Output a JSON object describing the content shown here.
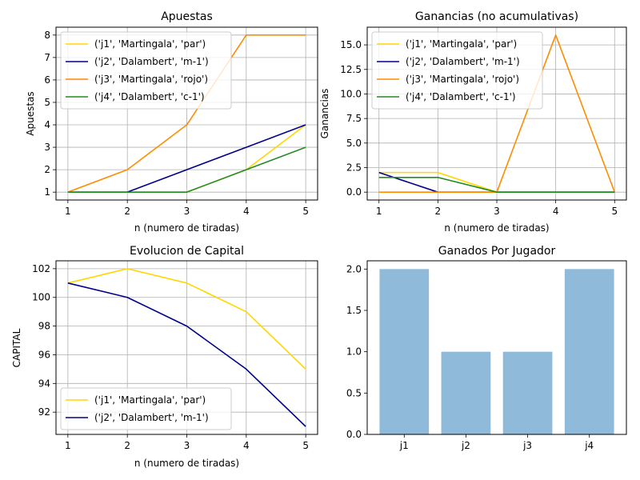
{
  "chart_data": [
    {
      "type": "line",
      "title": "Apuestas",
      "xlabel": "n (numero de tiradas)",
      "ylabel": "Apuestas",
      "x": [
        1,
        2,
        3,
        4,
        5
      ],
      "xlim": [
        0.8,
        5.2
      ],
      "ylim": [
        0.65,
        8.35
      ],
      "xticks": [
        1,
        2,
        3,
        4,
        5
      ],
      "yticks": [
        1,
        2,
        3,
        4,
        5,
        6,
        7,
        8
      ],
      "ytick_labels": [
        "1",
        "2",
        "3",
        "4",
        "5",
        "6",
        "7",
        "8"
      ],
      "grid": true,
      "legend": "upper-left",
      "series": [
        {
          "name": "('j1', 'Martingala', 'par')",
          "color": "#FFD700",
          "values": [
            1,
            1,
            1,
            2,
            4
          ]
        },
        {
          "name": "('j2', 'Dalambert', 'm-1')",
          "color": "#00008B",
          "values": [
            1,
            1,
            2,
            3,
            4
          ]
        },
        {
          "name": "('j3', 'Martingala', 'rojo')",
          "color": "#FF8C00",
          "values": [
            1,
            2,
            4,
            8,
            8
          ]
        },
        {
          "name": "('j4', 'Dalambert', 'c-1')",
          "color": "#228B22",
          "values": [
            1,
            1,
            1,
            2,
            3
          ]
        }
      ]
    },
    {
      "type": "line",
      "title": "Ganancias (no acumulativas)",
      "xlabel": "n (numero de tiradas)",
      "ylabel": "Ganancias",
      "x": [
        1,
        2,
        3,
        4,
        5
      ],
      "xlim": [
        0.8,
        5.2
      ],
      "ylim": [
        -0.8,
        16.8
      ],
      "xticks": [
        1,
        2,
        3,
        4,
        5
      ],
      "yticks": [
        0,
        2.5,
        5,
        7.5,
        10,
        12.5,
        15
      ],
      "ytick_labels": [
        "0.0",
        "2.5",
        "5.0",
        "7.5",
        "10.0",
        "12.5",
        "15.0"
      ],
      "grid": true,
      "legend": "upper-left",
      "series": [
        {
          "name": "('j1', 'Martingala', 'par')",
          "color": "#FFD700",
          "values": [
            2,
            2,
            0,
            0,
            0
          ]
        },
        {
          "name": "('j2', 'Dalambert', 'm-1')",
          "color": "#00008B",
          "values": [
            2,
            0,
            0,
            0,
            0
          ]
        },
        {
          "name": "('j3', 'Martingala', 'rojo')",
          "color": "#FF8C00",
          "values": [
            0,
            0,
            0,
            16,
            0
          ]
        },
        {
          "name": "('j4', 'Dalambert', 'c-1')",
          "color": "#228B22",
          "values": [
            1.5,
            1.5,
            0,
            0,
            0
          ]
        }
      ]
    },
    {
      "type": "line",
      "title": "Evolucion de Capital",
      "xlabel": "n (numero de tiradas)",
      "ylabel": "CAPITAL",
      "x": [
        1,
        2,
        3,
        4,
        5
      ],
      "xlim": [
        0.8,
        5.2
      ],
      "ylim": [
        90.45,
        102.55
      ],
      "xticks": [
        1,
        2,
        3,
        4,
        5
      ],
      "yticks": [
        92,
        94,
        96,
        98,
        100,
        102
      ],
      "ytick_labels": [
        "92",
        "94",
        "96",
        "98",
        "100",
        "102"
      ],
      "grid": true,
      "legend": "lower-left",
      "series": [
        {
          "name": "('j1', 'Martingala', 'par')",
          "color": "#FFD700",
          "values": [
            101,
            102,
            101,
            99,
            95
          ]
        },
        {
          "name": "('j2', 'Dalambert', 'm-1')",
          "color": "#00008B",
          "values": [
            101,
            100,
            98,
            95,
            91
          ]
        }
      ]
    },
    {
      "type": "bar",
      "title": "Ganados Por Jugador",
      "categories": [
        "j1",
        "j2",
        "j3",
        "j4"
      ],
      "values": [
        2,
        1,
        1,
        2
      ],
      "ylim": [
        0,
        2.1
      ],
      "yticks": [
        0,
        0.5,
        1,
        1.5,
        2
      ],
      "ytick_labels": [
        "0.0",
        "0.5",
        "1.0",
        "1.5",
        "2.0"
      ],
      "grid": false,
      "color": "#8FBAD9"
    }
  ]
}
